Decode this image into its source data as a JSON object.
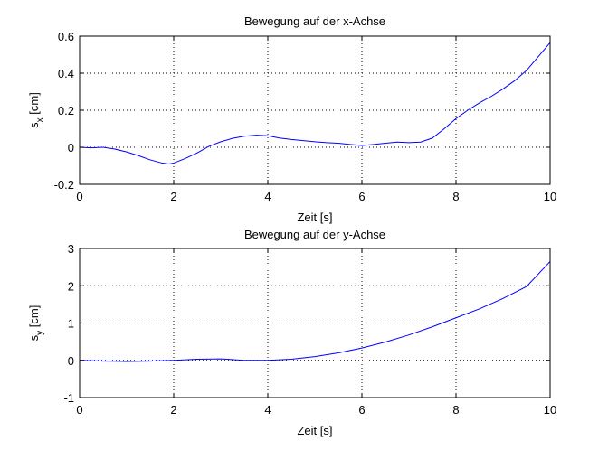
{
  "chart_data": [
    {
      "type": "line",
      "title": "Bewegung auf der x-Achse",
      "xlabel": "Zeit [s]",
      "ylabel": {
        "base": "s",
        "sub": "x",
        "rest": " [cm]"
      },
      "xlim": [
        0,
        10
      ],
      "ylim": [
        -0.2,
        0.6
      ],
      "xticks": [
        0,
        2,
        4,
        6,
        8,
        10
      ],
      "xtick_labels": [
        "0",
        "2",
        "4",
        "6",
        "8",
        "10"
      ],
      "yticks": [
        -0.2,
        0,
        0.2,
        0.4,
        0.6
      ],
      "ytick_labels": [
        "-0.2",
        "0",
        "0.2",
        "0.4",
        "0.6"
      ],
      "grid": true,
      "color": "#0000ff",
      "series": [
        {
          "x": [
            0,
            0.25,
            0.5,
            0.75,
            1.0,
            1.25,
            1.5,
            1.75,
            1.9,
            2.0,
            2.25,
            2.5,
            2.75,
            3.0,
            3.25,
            3.5,
            3.75,
            4.0,
            4.25,
            4.5,
            4.75,
            5.0,
            5.25,
            5.5,
            5.75,
            6.0,
            6.25,
            6.5,
            6.75,
            7.0,
            7.25,
            7.5,
            7.75,
            8.0,
            8.25,
            8.5,
            8.75,
            9.0,
            9.25,
            9.5,
            9.75,
            10.0
          ],
          "y": [
            0,
            -0.003,
            0.0,
            -0.01,
            -0.025,
            -0.045,
            -0.068,
            -0.085,
            -0.09,
            -0.085,
            -0.06,
            -0.03,
            0.005,
            0.03,
            0.048,
            0.06,
            0.065,
            0.062,
            0.05,
            0.042,
            0.036,
            0.03,
            0.025,
            0.022,
            0.015,
            0.01,
            0.015,
            0.022,
            0.028,
            0.025,
            0.028,
            0.05,
            0.1,
            0.155,
            0.2,
            0.24,
            0.275,
            0.315,
            0.36,
            0.415,
            0.49,
            0.565
          ]
        }
      ]
    },
    {
      "type": "line",
      "title": "Bewegung auf der y-Achse",
      "xlabel": "Zeit [s]",
      "ylabel": {
        "base": "s",
        "sub": "y",
        "rest": " [cm]"
      },
      "xlim": [
        0,
        10
      ],
      "ylim": [
        -1,
        3
      ],
      "xticks": [
        0,
        2,
        4,
        6,
        8,
        10
      ],
      "xtick_labels": [
        "0",
        "2",
        "4",
        "6",
        "8",
        "10"
      ],
      "yticks": [
        -1,
        0,
        1,
        2,
        3
      ],
      "ytick_labels": [
        "-1",
        "0",
        "1",
        "2",
        "3"
      ],
      "grid": true,
      "color": "#0000ff",
      "series": [
        {
          "x": [
            0,
            0.5,
            1.0,
            1.5,
            2.0,
            2.5,
            3.0,
            3.5,
            4.0,
            4.5,
            5.0,
            5.5,
            6.0,
            6.5,
            7.0,
            7.5,
            8.0,
            8.5,
            9.0,
            9.5,
            10.0
          ],
          "y": [
            0,
            -0.02,
            -0.03,
            -0.02,
            0.0,
            0.03,
            0.04,
            0.0,
            0.0,
            0.03,
            0.1,
            0.2,
            0.33,
            0.49,
            0.68,
            0.9,
            1.14,
            1.38,
            1.66,
            1.98,
            2.65
          ]
        }
      ]
    }
  ]
}
